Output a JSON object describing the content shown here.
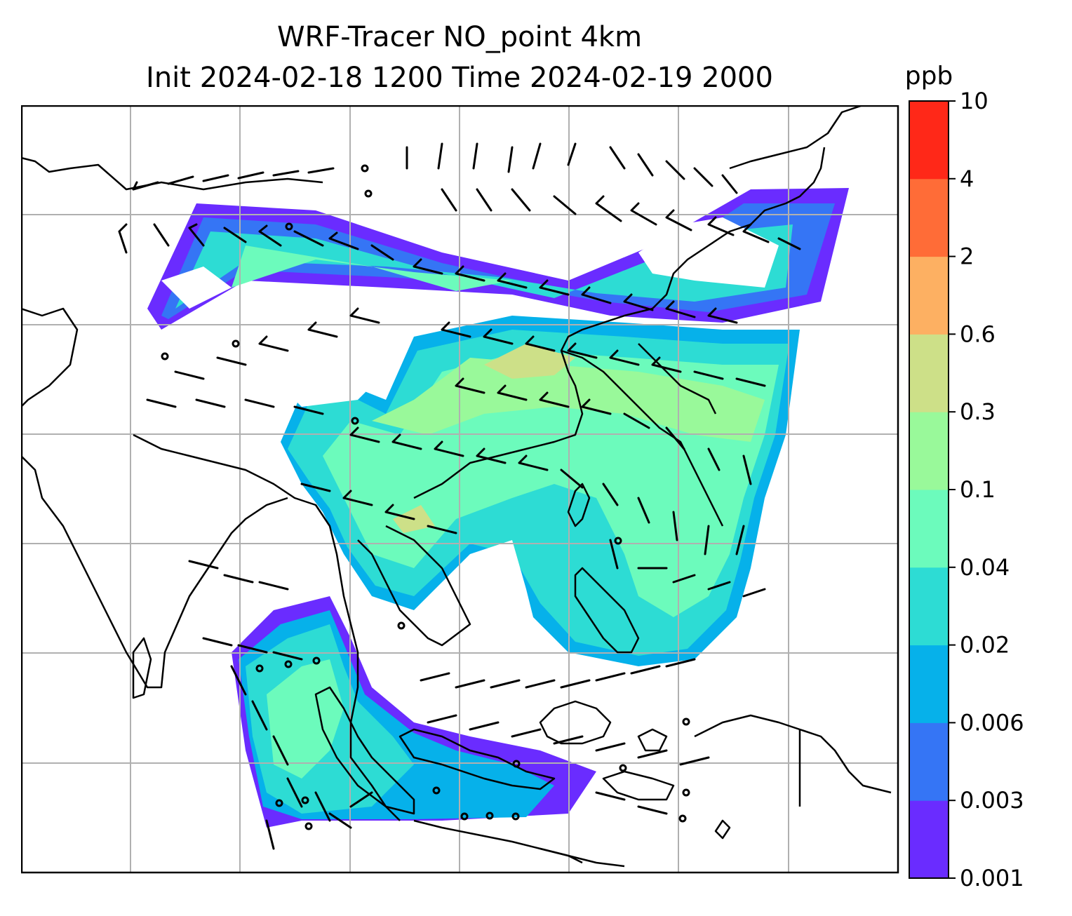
{
  "title": {
    "line1": "WRF-Tracer NO_point 4km",
    "line2": "Init 2024-02-18 1200 Time 2024-02-19 2000"
  },
  "colorbar": {
    "unit": "ppb",
    "levels": [
      "0.001",
      "0.003",
      "0.006",
      "0.02",
      "0.04",
      "0.1",
      "0.3",
      "0.6",
      "2",
      "4",
      "10"
    ],
    "colors": [
      "#6a2cff",
      "#3575f5",
      "#06b1ea",
      "#2ddcd4",
      "#6cfbbc",
      "#99f99a",
      "#cde088",
      "#fdb062",
      "#ff6c37",
      "#ff2818"
    ]
  },
  "map": {
    "background": "#ffffff",
    "gridline_color": "#b0b0b0",
    "coastline_color": "#000000",
    "grid_columns": 8,
    "grid_rows": 7,
    "features": [
      "coastlines",
      "gridlines",
      "wind-barbs",
      "tracer-concentration"
    ]
  }
}
